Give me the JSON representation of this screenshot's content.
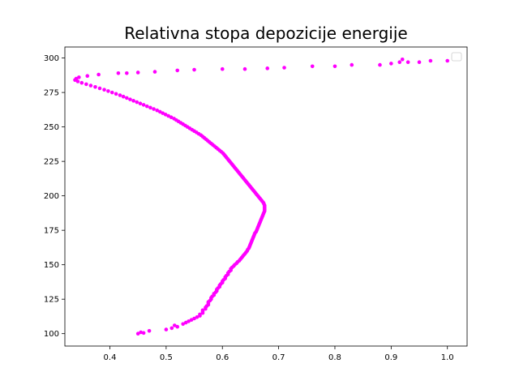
{
  "chart_data": {
    "type": "scatter",
    "title": "Relativna stopa depozicije energije",
    "xlabel": "",
    "ylabel": "",
    "xlim": [
      0.32,
      1.035
    ],
    "ylim": [
      91,
      308
    ],
    "xticks": [
      0.4,
      0.5,
      0.6,
      0.7,
      0.8,
      0.9,
      1.0
    ],
    "xtick_labels": [
      "0.4",
      "0.5",
      "0.6",
      "0.7",
      "0.8",
      "0.9",
      "1.0"
    ],
    "yticks": [
      100,
      125,
      150,
      175,
      200,
      225,
      250,
      275,
      300
    ],
    "ytick_labels": [
      "100",
      "125",
      "150",
      "175",
      "200",
      "225",
      "250",
      "275",
      "300"
    ],
    "grid": false,
    "legend": "top-right",
    "marker_color": "#ff00ff",
    "series": [
      {
        "points": [
          [
            0.45,
            100
          ],
          [
            0.46,
            100.5
          ],
          [
            0.455,
            101
          ],
          [
            0.47,
            102
          ],
          [
            0.5,
            103
          ],
          [
            0.51,
            104
          ],
          [
            0.52,
            105
          ],
          [
            0.515,
            106
          ],
          [
            0.53,
            107
          ],
          [
            0.535,
            108
          ],
          [
            0.54,
            109
          ],
          [
            0.545,
            110
          ],
          [
            0.55,
            111
          ],
          [
            0.555,
            112
          ],
          [
            0.56,
            113
          ],
          [
            0.56,
            114
          ],
          [
            0.565,
            115
          ],
          [
            0.565,
            116
          ],
          [
            0.565,
            117
          ],
          [
            0.57,
            118
          ],
          [
            0.57,
            119
          ],
          [
            0.572,
            120
          ],
          [
            0.575,
            121
          ],
          [
            0.575,
            122
          ],
          [
            0.575,
            123
          ],
          [
            0.578,
            124
          ],
          [
            0.58,
            125
          ],
          [
            0.58,
            126
          ],
          [
            0.582,
            127
          ],
          [
            0.585,
            128
          ],
          [
            0.585,
            129
          ],
          [
            0.588,
            130
          ],
          [
            0.59,
            131
          ],
          [
            0.59,
            132
          ],
          [
            0.592,
            133
          ],
          [
            0.595,
            134
          ],
          [
            0.595,
            135
          ],
          [
            0.597,
            136
          ],
          [
            0.6,
            137
          ],
          [
            0.6,
            138
          ],
          [
            0.602,
            139
          ],
          [
            0.605,
            140
          ],
          [
            0.605,
            141
          ],
          [
            0.607,
            142
          ],
          [
            0.61,
            143
          ],
          [
            0.61,
            144
          ],
          [
            0.612,
            145
          ],
          [
            0.615,
            146
          ],
          [
            0.615,
            147
          ],
          [
            0.617,
            148
          ],
          [
            0.62,
            149
          ],
          [
            0.622,
            150
          ],
          [
            0.625,
            151
          ],
          [
            0.627,
            152
          ],
          [
            0.63,
            153
          ],
          [
            0.632,
            154
          ],
          [
            0.634,
            155
          ],
          [
            0.636,
            156
          ],
          [
            0.638,
            157
          ],
          [
            0.64,
            158
          ],
          [
            0.642,
            159
          ],
          [
            0.644,
            160
          ],
          [
            0.645,
            161
          ],
          [
            0.647,
            162
          ],
          [
            0.648,
            163
          ],
          [
            0.649,
            164
          ],
          [
            0.65,
            165
          ],
          [
            0.651,
            166
          ],
          [
            0.652,
            167
          ],
          [
            0.653,
            168
          ],
          [
            0.654,
            169
          ],
          [
            0.655,
            170
          ],
          [
            0.656,
            171
          ],
          [
            0.657,
            172
          ],
          [
            0.658,
            173
          ],
          [
            0.66,
            174
          ],
          [
            0.661,
            175
          ],
          [
            0.662,
            176
          ],
          [
            0.663,
            177
          ],
          [
            0.664,
            178
          ],
          [
            0.665,
            179
          ],
          [
            0.666,
            180
          ],
          [
            0.667,
            181
          ],
          [
            0.668,
            182
          ],
          [
            0.669,
            183
          ],
          [
            0.67,
            184
          ],
          [
            0.671,
            185
          ],
          [
            0.672,
            186
          ],
          [
            0.673,
            187
          ],
          [
            0.674,
            188
          ],
          [
            0.675,
            189
          ],
          [
            0.675,
            190
          ],
          [
            0.675,
            191
          ],
          [
            0.675,
            192
          ],
          [
            0.675,
            193
          ],
          [
            0.674,
            194
          ],
          [
            0.673,
            195
          ],
          [
            0.671,
            196
          ],
          [
            0.669,
            197
          ],
          [
            0.667,
            198
          ],
          [
            0.665,
            199
          ],
          [
            0.663,
            200
          ],
          [
            0.661,
            201
          ],
          [
            0.659,
            202
          ],
          [
            0.657,
            203
          ],
          [
            0.655,
            204
          ],
          [
            0.653,
            205
          ],
          [
            0.651,
            206
          ],
          [
            0.649,
            207
          ],
          [
            0.647,
            208
          ],
          [
            0.645,
            209
          ],
          [
            0.643,
            210
          ],
          [
            0.641,
            211
          ],
          [
            0.639,
            212
          ],
          [
            0.637,
            213
          ],
          [
            0.635,
            214
          ],
          [
            0.633,
            215
          ],
          [
            0.631,
            216
          ],
          [
            0.629,
            217
          ],
          [
            0.627,
            218
          ],
          [
            0.625,
            219
          ],
          [
            0.623,
            220
          ],
          [
            0.621,
            221
          ],
          [
            0.619,
            222
          ],
          [
            0.617,
            223
          ],
          [
            0.615,
            224
          ],
          [
            0.613,
            225
          ],
          [
            0.611,
            226
          ],
          [
            0.609,
            227
          ],
          [
            0.607,
            228
          ],
          [
            0.605,
            229
          ],
          [
            0.603,
            230
          ],
          [
            0.601,
            231
          ],
          [
            0.598,
            232
          ],
          [
            0.595,
            233
          ],
          [
            0.592,
            234
          ],
          [
            0.589,
            235
          ],
          [
            0.586,
            236
          ],
          [
            0.583,
            237
          ],
          [
            0.58,
            238
          ],
          [
            0.577,
            239
          ],
          [
            0.574,
            240
          ],
          [
            0.571,
            241
          ],
          [
            0.568,
            242
          ],
          [
            0.565,
            243
          ],
          [
            0.562,
            244
          ],
          [
            0.558,
            245
          ],
          [
            0.554,
            246
          ],
          [
            0.55,
            247
          ],
          [
            0.546,
            248
          ],
          [
            0.542,
            249
          ],
          [
            0.538,
            250
          ],
          [
            0.534,
            251
          ],
          [
            0.53,
            252
          ],
          [
            0.526,
            253
          ],
          [
            0.522,
            254
          ],
          [
            0.518,
            255
          ],
          [
            0.514,
            256
          ],
          [
            0.509,
            257
          ],
          [
            0.504,
            258
          ],
          [
            0.499,
            259
          ],
          [
            0.494,
            260
          ],
          [
            0.489,
            261
          ],
          [
            0.484,
            262
          ],
          [
            0.478,
            263
          ],
          [
            0.472,
            264
          ],
          [
            0.466,
            265
          ],
          [
            0.46,
            266
          ],
          [
            0.454,
            267
          ],
          [
            0.448,
            268
          ],
          [
            0.442,
            269
          ],
          [
            0.436,
            270
          ],
          [
            0.43,
            271
          ],
          [
            0.424,
            272
          ],
          [
            0.418,
            273
          ],
          [
            0.411,
            274
          ],
          [
            0.404,
            275
          ],
          [
            0.397,
            276
          ],
          [
            0.39,
            277
          ],
          [
            0.382,
            278
          ],
          [
            0.374,
            279
          ],
          [
            0.366,
            280
          ],
          [
            0.358,
            281
          ],
          [
            0.35,
            282
          ],
          [
            0.343,
            283
          ],
          [
            0.338,
            284
          ],
          [
            0.34,
            285
          ],
          [
            0.345,
            286
          ],
          [
            0.36,
            287
          ],
          [
            0.38,
            288
          ],
          [
            0.415,
            289
          ],
          [
            0.43,
            289
          ],
          [
            0.45,
            289.5
          ],
          [
            0.48,
            290
          ],
          [
            0.52,
            291
          ],
          [
            0.55,
            291.5
          ],
          [
            0.6,
            292
          ],
          [
            0.64,
            292
          ],
          [
            0.68,
            292.5
          ],
          [
            0.71,
            293
          ],
          [
            0.76,
            294
          ],
          [
            0.8,
            294
          ],
          [
            0.83,
            295
          ],
          [
            0.88,
            295
          ],
          [
            0.9,
            296
          ],
          [
            0.915,
            297
          ],
          [
            0.92,
            299
          ],
          [
            0.93,
            297
          ],
          [
            0.95,
            297
          ],
          [
            0.97,
            298
          ],
          [
            1.0,
            298
          ]
        ]
      }
    ]
  }
}
